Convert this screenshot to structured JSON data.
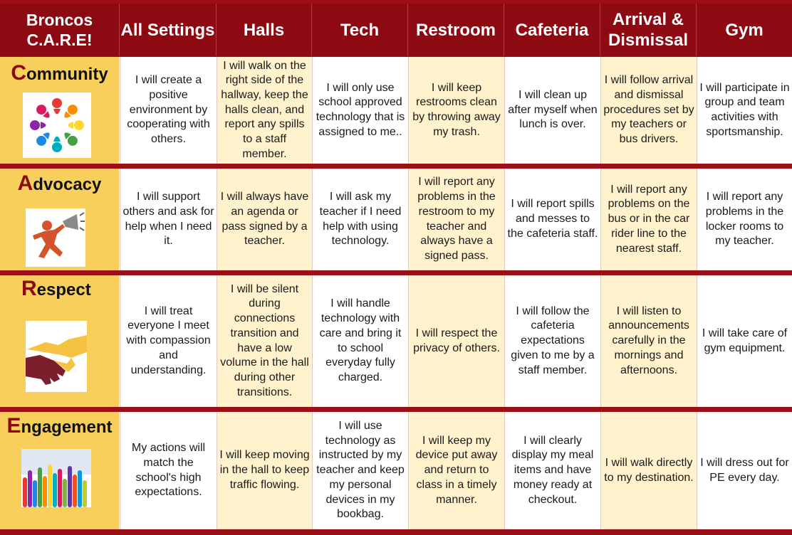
{
  "title_cell": "Broncos C.A.R.E!",
  "columns": [
    "All Settings",
    "Halls",
    "Tech",
    "Restroom",
    "Cafeteria",
    "Arrival & Dismissal",
    "Gym"
  ],
  "colors": {
    "header_bg": "#8e0a12",
    "label_bg": "#f7cf5a",
    "shaded_cell": "#fff2cc",
    "accent_letter": "#8e0a12"
  },
  "rows": [
    {
      "initial": "C",
      "rest": "ommunity",
      "icon": "people-circle-icon",
      "cells": [
        "I will create a positive environment by cooperating with others.",
        "I will walk on the right side of the hallway, keep the halls clean, and report any spills to a staff member.",
        "I will only use school approved technology that is assigned to me..",
        "I will keep restrooms clean by throwing away my trash.",
        "I will clean up after myself when lunch is over.",
        "I will follow arrival and dismissal procedures set by my teachers or bus drivers.",
        "I will participate in group and team activities with sportsmanship."
      ]
    },
    {
      "initial": "A",
      "rest": "dvocacy",
      "icon": "megaphone-person-icon",
      "cells": [
        "I will support others and ask for help when I need it.",
        "I will always have an agenda or pass signed by a teacher.",
        "I will ask my teacher if I need help with using technology.",
        "I will report any problems in the restroom to my teacher and always have a signed pass.",
        "I will report spills and messes to the cafeteria staff.",
        "I will report any problems on the bus or in the car rider line to the nearest staff.",
        "I will report any problems in the locker rooms to my teacher."
      ]
    },
    {
      "initial": "R",
      "rest": "espect",
      "icon": "handshake-icon",
      "cells": [
        "I will treat everyone I meet with compassion and understanding.",
        "I will be silent during connections transition and have a low volume in the hall during other transitions.",
        "I will handle technology with care and bring it to school everyday fully charged.",
        "I will respect the privacy of others.",
        "I will follow the cafeteria expectations given to me by a staff member.",
        "I will listen to announcements carefully in the mornings and afternoons.",
        "I will take care of gym equipment."
      ]
    },
    {
      "initial": "E",
      "rest": "ngagement",
      "icon": "raised-hands-icon",
      "cells": [
        "My actions will match the school's high expectations.",
        "I will keep moving in the hall to keep traffic flowing.",
        "I will use technology as instructed by my teacher and keep my personal devices in my bookbag.",
        "I will keep my device put away and return to class in a timely manner.",
        "I will clearly display my meal items and have money ready at checkout.",
        "I will walk directly to my destination.",
        "I will dress out for PE every day."
      ]
    }
  ]
}
